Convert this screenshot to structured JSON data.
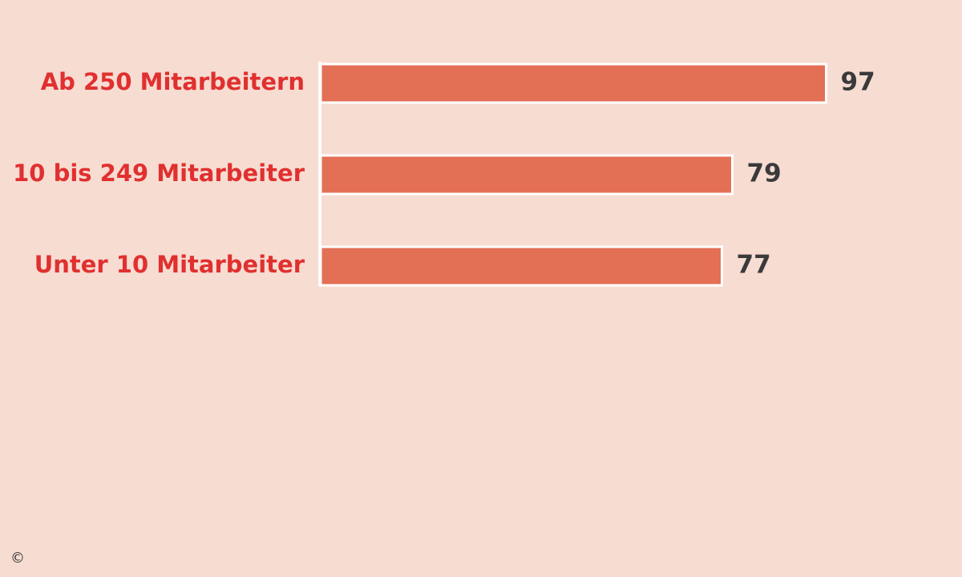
{
  "chart_data": {
    "type": "hbar",
    "categories": [
      "Ab 250 Mitarbeitern",
      "10 bis 249 Mitarbeiter",
      "Unter 10 Mitarbeiter"
    ],
    "values": [
      97,
      79,
      77
    ],
    "color": "#e36f55",
    "copyright": "©"
  }
}
